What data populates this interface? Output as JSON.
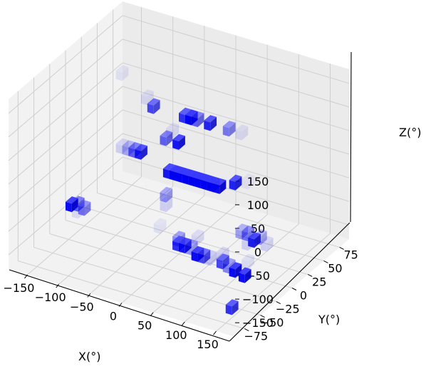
{
  "chart_data": {
    "type": "scatter",
    "projection": "3d",
    "marker": "voxel",
    "color": "#0000ff",
    "grid": true,
    "xlabel": "X(°)",
    "ylabel": "Y(°)",
    "zlabel": "Z(°)",
    "xlim": [
      -180,
      180
    ],
    "ylim": [
      -90,
      90
    ],
    "zlim": [
      -180,
      180
    ],
    "x_ticks": [
      -150,
      -100,
      -50,
      0,
      50,
      100,
      150
    ],
    "x_tick_labels": [
      "−150",
      "−100",
      "−50",
      "0",
      "50",
      "100",
      "150"
    ],
    "y_ticks": [
      -75,
      -50,
      -25,
      0,
      25,
      50,
      75
    ],
    "y_tick_labels": [
      "−75",
      "−50",
      "−25",
      "0",
      "25",
      "50",
      "75"
    ],
    "z_ticks": [
      -150,
      -100,
      -50,
      0,
      50,
      100,
      150
    ],
    "z_tick_labels": [
      "−150",
      "−100",
      "−50",
      "0",
      "50",
      "100",
      "150"
    ],
    "points": [
      {
        "x": -5,
        "y": 0,
        "z": -10,
        "intensity": 1.0
      },
      {
        "x": 5,
        "y": 0,
        "z": -10,
        "intensity": 1.0
      },
      {
        "x": 15,
        "y": 0,
        "z": -10,
        "intensity": 1.0
      },
      {
        "x": 25,
        "y": 0,
        "z": -10,
        "intensity": 1.0
      },
      {
        "x": 35,
        "y": 0,
        "z": -10,
        "intensity": 1.0
      },
      {
        "x": 45,
        "y": 0,
        "z": -10,
        "intensity": 1.0
      },
      {
        "x": 55,
        "y": 0,
        "z": -10,
        "intensity": 1.0
      },
      {
        "x": 65,
        "y": 0,
        "z": -10,
        "intensity": 0.95
      },
      {
        "x": -15,
        "y": 0,
        "z": -10,
        "intensity": 0.9
      },
      {
        "x": 85,
        "y": 5,
        "z": 0,
        "intensity": 0.85
      },
      {
        "x": -65,
        "y": 5,
        "z": 5,
        "intensity": 0.85
      },
      {
        "x": -75,
        "y": 5,
        "z": 5,
        "intensity": 0.6
      },
      {
        "x": -85,
        "y": 5,
        "z": 5,
        "intensity": 0.3
      },
      {
        "x": -95,
        "y": 5,
        "z": 5,
        "intensity": 0.15
      },
      {
        "x": -25,
        "y": 5,
        "z": 50,
        "intensity": 0.6
      },
      {
        "x": -5,
        "y": 5,
        "z": 50,
        "intensity": 0.9
      },
      {
        "x": -15,
        "y": 5,
        "z": 70,
        "intensity": 0.1
      },
      {
        "x": -25,
        "y": 5,
        "z": -70,
        "intensity": 0.4
      },
      {
        "x": -25,
        "y": 5,
        "z": -90,
        "intensity": 0.15
      },
      {
        "x": -45,
        "y": 5,
        "z": 110,
        "intensity": 0.7
      },
      {
        "x": 5,
        "y": 5,
        "z": 110,
        "intensity": 0.8
      },
      {
        "x": 15,
        "y": 5,
        "z": 110,
        "intensity": 1.0
      },
      {
        "x": 25,
        "y": 5,
        "z": 110,
        "intensity": 0.6
      },
      {
        "x": 45,
        "y": 5,
        "z": 110,
        "intensity": 0.85
      },
      {
        "x": 75,
        "y": 5,
        "z": 110,
        "intensity": 0.5
      },
      {
        "x": 95,
        "y": 5,
        "z": 110,
        "intensity": 0.1
      },
      {
        "x": -95,
        "y": 5,
        "z": 160,
        "intensity": 0.08
      },
      {
        "x": -175,
        "y": 5,
        "z": -150,
        "intensity": 0.95
      },
      {
        "x": -165,
        "y": 5,
        "z": -145,
        "intensity": 0.6
      },
      {
        "x": -155,
        "y": 5,
        "z": -150,
        "intensity": 0.5
      },
      {
        "x": -165,
        "y": 5,
        "z": -160,
        "intensity": 0.1
      },
      {
        "x": 95,
        "y": 5,
        "z": -100,
        "intensity": 0.35
      },
      {
        "x": 105,
        "y": 5,
        "z": -100,
        "intensity": 0.5
      },
      {
        "x": 115,
        "y": 5,
        "z": -110,
        "intensity": 0.85
      },
      {
        "x": 125,
        "y": 5,
        "z": -100,
        "intensity": 0.35
      },
      {
        "x": 135,
        "y": 5,
        "z": -110,
        "intensity": 0.15
      },
      {
        "x": 105,
        "y": 5,
        "z": -120,
        "intensity": 0.15
      },
      {
        "x": 25,
        "y": 5,
        "z": -140,
        "intensity": 0.12
      },
      {
        "x": -35,
        "y": 5,
        "z": -140,
        "intensity": 0.08
      },
      {
        "x": 105,
        "y": 5,
        "z": 10,
        "intensity": 0.06
      },
      {
        "x": -5,
        "y": 5,
        "z": -155,
        "intensity": 0.35
      },
      {
        "x": 105,
        "y": 5,
        "z": -160,
        "intensity": 0.1
      },
      {
        "x": 5,
        "y": -5,
        "z": -150,
        "intensity": 0.8
      },
      {
        "x": 15,
        "y": -5,
        "z": -150,
        "intensity": 0.9
      },
      {
        "x": 25,
        "y": -5,
        "z": -150,
        "intensity": 0.4
      },
      {
        "x": 35,
        "y": -5,
        "z": -160,
        "intensity": 0.95
      },
      {
        "x": 45,
        "y": -5,
        "z": -160,
        "intensity": 0.7
      },
      {
        "x": 55,
        "y": -5,
        "z": -160,
        "intensity": 0.2
      },
      {
        "x": 75,
        "y": -5,
        "z": -160,
        "intensity": 0.7
      },
      {
        "x": 85,
        "y": -5,
        "z": -165,
        "intensity": 0.45
      },
      {
        "x": 95,
        "y": -5,
        "z": -170,
        "intensity": 0.95
      },
      {
        "x": 110,
        "y": -5,
        "z": -175,
        "intensity": 0.95
      },
      {
        "x": 75,
        "y": -5,
        "z": -145,
        "intensity": 0.15
      },
      {
        "x": 5,
        "y": -5,
        "z": -140,
        "intensity": 0.12
      },
      {
        "x": 155,
        "y": -70,
        "z": -150,
        "intensity": 0.8
      },
      {
        "x": -45,
        "y": -5,
        "z": 140,
        "intensity": 0.1
      }
    ]
  }
}
